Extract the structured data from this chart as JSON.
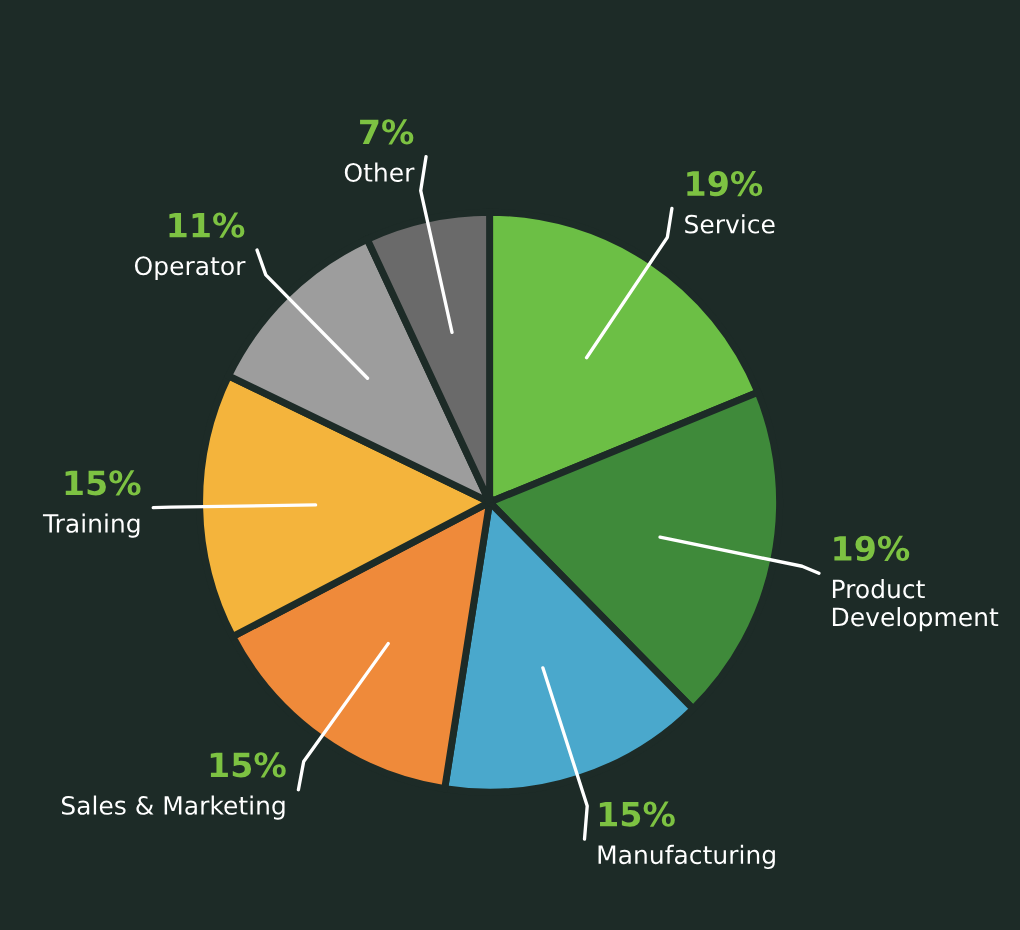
{
  "chart_data": {
    "type": "pie",
    "categories": [
      "Service",
      "Product\nDevelopment",
      "Manufacturing",
      "Sales & Marketing",
      "Training",
      "Operator",
      "Other"
    ],
    "values": [
      19,
      19,
      15,
      15,
      15,
      11,
      7
    ],
    "colors": [
      "#6cbf45",
      "#3f8a3a",
      "#4aa8cc",
      "#ef8a3a",
      "#f4b43c",
      "#9d9d9d",
      "#6a6a6a"
    ],
    "value_labels": [
      "19%",
      "19%",
      "15%",
      "15%",
      "15%",
      "11%",
      "7%"
    ]
  }
}
